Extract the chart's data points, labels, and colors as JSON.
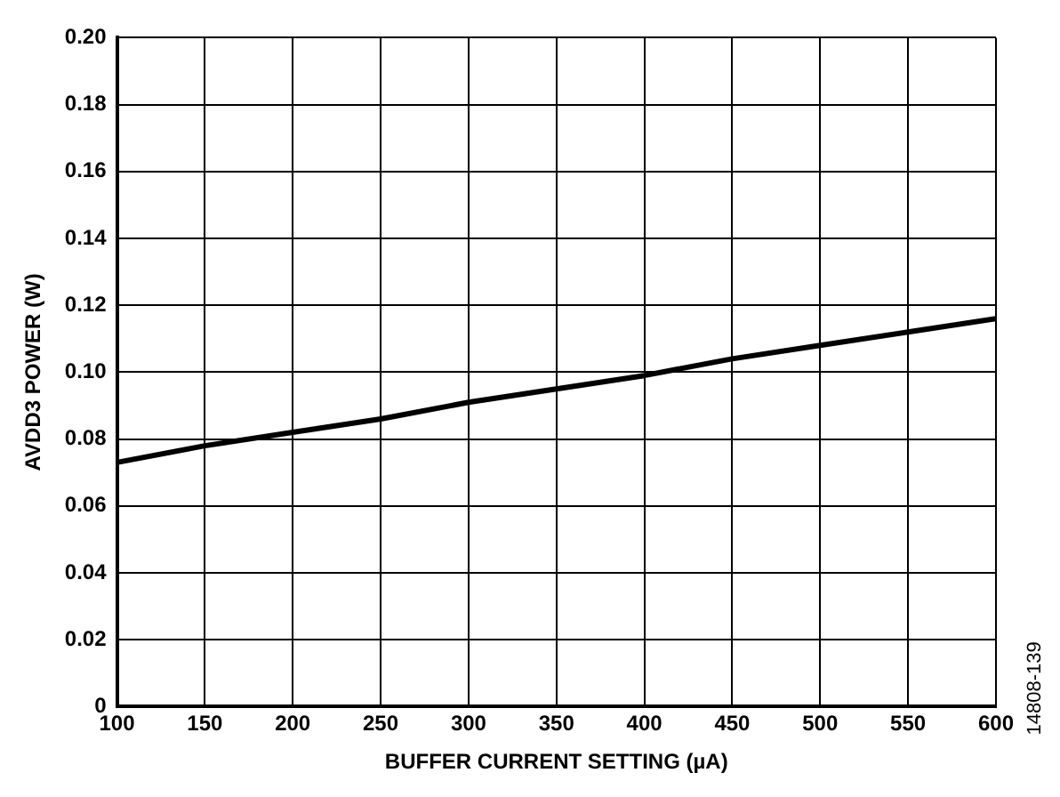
{
  "chart_data": {
    "type": "line",
    "xlabel": "BUFFER CURRENT SETTING (µA)",
    "ylabel": "AVDD3 POWER (W)",
    "x": [
      100,
      150,
      200,
      250,
      300,
      350,
      400,
      450,
      500,
      550,
      600
    ],
    "series": [
      {
        "color": "#000000",
        "values": [
          0.073,
          0.078,
          0.082,
          0.086,
          0.091,
          0.095,
          0.099,
          0.104,
          0.108,
          0.112,
          0.116
        ]
      }
    ],
    "xlim": [
      100,
      600
    ],
    "xticks": [
      100,
      150,
      200,
      250,
      300,
      350,
      400,
      450,
      500,
      550,
      600
    ],
    "ylim": [
      0,
      0.2
    ],
    "yticks": [
      0,
      0.02,
      0.04,
      0.06,
      0.08,
      {
        "value": 0.1,
        "label": "0.10"
      },
      0.12,
      0.14,
      0.16,
      0.18,
      {
        "value": 0.2,
        "label": "0.20"
      }
    ],
    "grid": true,
    "legend": false,
    "marker": "none",
    "line_style": "solid",
    "annotations": [
      "14808-139"
    ]
  }
}
